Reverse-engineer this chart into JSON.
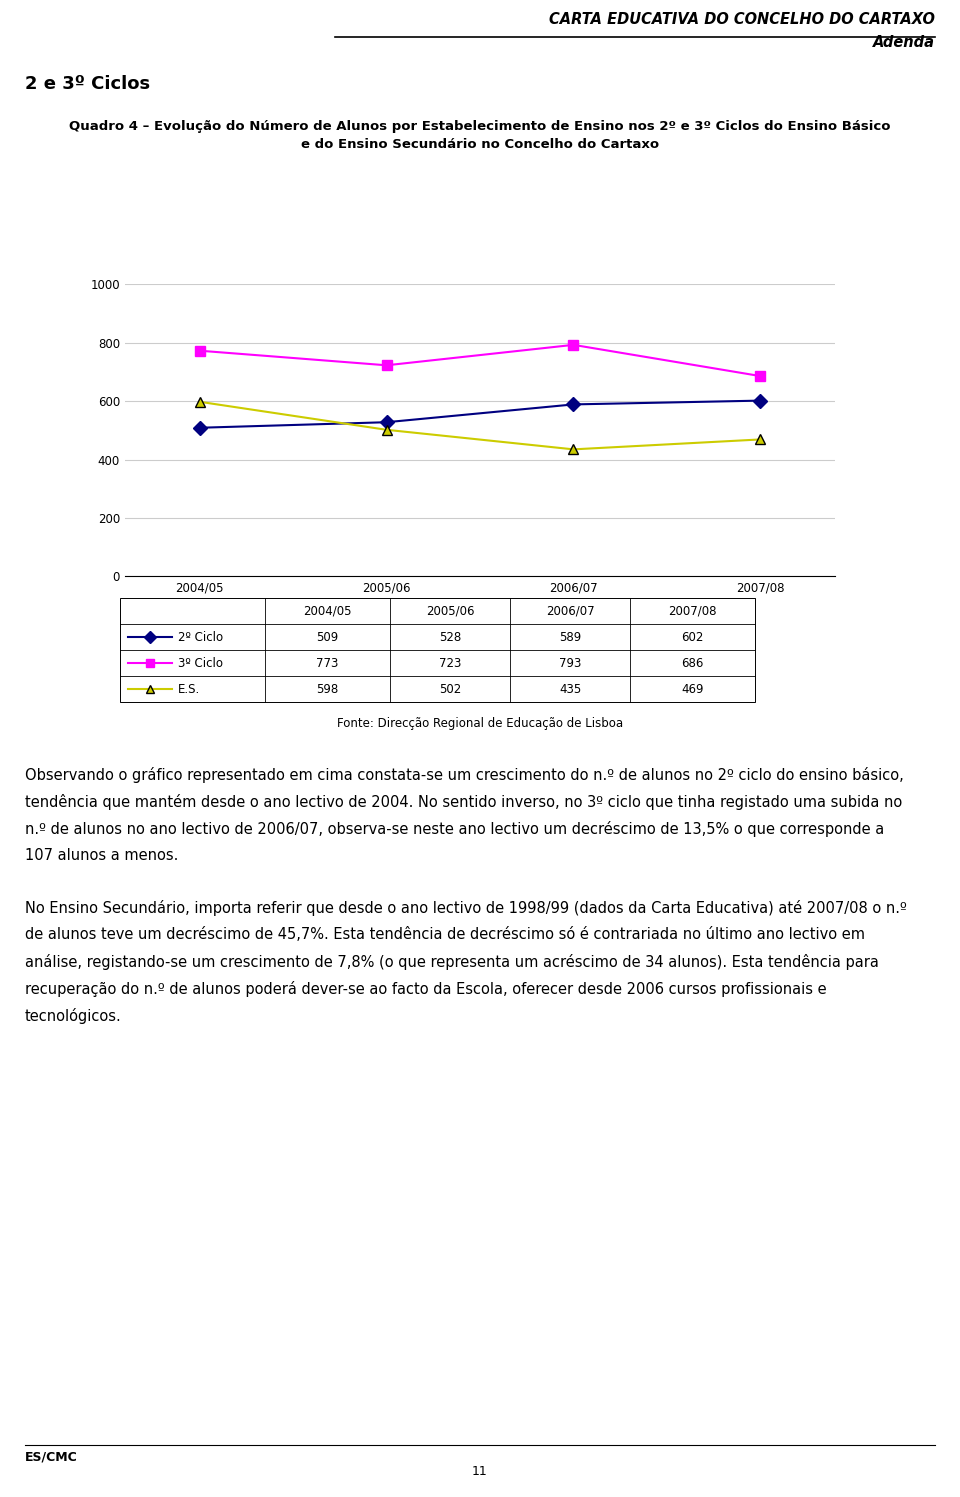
{
  "header_title": "CARTA EDUCATIVA DO CONCELHO DO CARTAXO",
  "header_subtitle": "Adenda",
  "section_title": "2 e 3º Ciclos",
  "chart_title_line1": "Quadro 4 – Evolução do Número de Alunos por Estabelecimento de Ensino nos 2º e 3º Ciclos do Ensino Básico",
  "chart_title_line2": "e do Ensino Secundário no Concelho do Cartaxo",
  "years": [
    "2004/05",
    "2005/06",
    "2006/07",
    "2007/08"
  ],
  "series": [
    {
      "label": "2º Ciclo",
      "values": [
        509,
        528,
        589,
        602
      ],
      "color": "#000080",
      "marker": "D",
      "linestyle": "-"
    },
    {
      "label": "3º Ciclo",
      "values": [
        773,
        723,
        793,
        686
      ],
      "color": "#FF00FF",
      "marker": "s",
      "linestyle": "-"
    },
    {
      "label": "E.S.",
      "values": [
        598,
        502,
        435,
        469
      ],
      "color": "#CCCC00",
      "marker": "^",
      "linestyle": "-"
    }
  ],
  "ylim": [
    0,
    1000
  ],
  "yticks": [
    0,
    200,
    400,
    600,
    800,
    1000
  ],
  "fonte": "Fonte: Direcção Regional de Educação de Lisboa",
  "para1_lines": [
    "Observando o gráfico representado em cima constata-se um crescimento do n.º de alunos no 2º ciclo do ensino básico,",
    "tendência que mantém desde o ano lectivo de 2004. No sentido inverso, no 3º ciclo que tinha registado uma subida no",
    "n.º de alunos no ano lectivo de 2006/07, observa-se neste ano lectivo um decréscimo de 13,5% o que corresponde a",
    "107 alunos a menos."
  ],
  "para2_lines": [
    "No Ensino Secundário, importa referir que desde o ano lectivo de 1998/99 (dados da Carta Educativa) até 2007/08 o n.º",
    "de alunos teve um decréscimo de 45,7%. Esta tendência de decréscimo só é contrariada no último ano lectivo em",
    "análise, registando-se um crescimento de 7,8% (o que representa um acréscimo de 34 alunos). Esta tendência para",
    "recuperação do n.º de alunos poderá dever-se ao facto da Escola, oferecer desde 2006 cursos profissionais e",
    "tecnológicos."
  ],
  "footer_left": "ES/CMC",
  "footer_page": "11",
  "bg_color": "#FFFFFF",
  "chart_bg": "#FFFFFF",
  "grid_color": "#CCCCCC"
}
